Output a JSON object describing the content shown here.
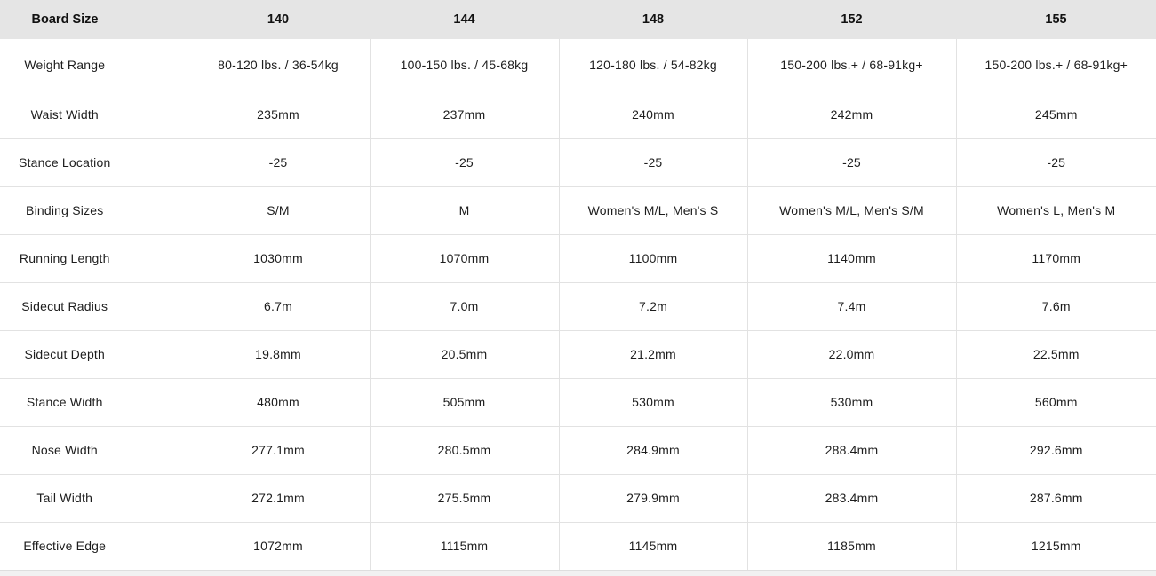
{
  "table": {
    "header": {
      "label": "Board Size",
      "sizes": [
        "140",
        "144",
        "148",
        "152",
        "155"
      ]
    },
    "rows": [
      {
        "label": "Weight Range",
        "values": [
          "80-120 lbs. / 36-54kg",
          "100-150 lbs. / 45-68kg",
          "120-180 lbs. / 54-82kg",
          "150-200 lbs.+ / 68-91kg+",
          "150-200 lbs.+ / 68-91kg+"
        ]
      },
      {
        "label": "Waist Width",
        "values": [
          "235mm",
          "237mm",
          "240mm",
          "242mm",
          "245mm"
        ]
      },
      {
        "label": "Stance Location",
        "values": [
          "-25",
          "-25",
          "-25",
          "-25",
          "-25"
        ]
      },
      {
        "label": "Binding Sizes",
        "values": [
          "S/M",
          "M",
          "Women's M/L, Men's S",
          "Women's M/L, Men's S/M",
          "Women's L, Men's M"
        ]
      },
      {
        "label": "Running Length",
        "values": [
          "1030mm",
          "1070mm",
          "1100mm",
          "1140mm",
          "1170mm"
        ]
      },
      {
        "label": "Sidecut Radius",
        "values": [
          "6.7m",
          "7.0m",
          "7.2m",
          "7.4m",
          "7.6m"
        ]
      },
      {
        "label": "Sidecut Depth",
        "values": [
          "19.8mm",
          "20.5mm",
          "21.2mm",
          "22.0mm",
          "22.5mm"
        ]
      },
      {
        "label": "Stance Width",
        "values": [
          "480mm",
          "505mm",
          "530mm",
          "530mm",
          "560mm"
        ]
      },
      {
        "label": "Nose Width",
        "values": [
          "277.1mm",
          "280.5mm",
          "284.9mm",
          "288.4mm",
          "292.6mm"
        ]
      },
      {
        "label": "Tail Width",
        "values": [
          "272.1mm",
          "275.5mm",
          "279.9mm",
          "283.4mm",
          "287.6mm"
        ]
      },
      {
        "label": "Effective Edge",
        "values": [
          "1072mm",
          "1115mm",
          "1145mm",
          "1185mm",
          "1215mm"
        ]
      }
    ]
  },
  "colors": {
    "header_bg": "#e5e5e5",
    "grid_border": "#e2e2e2",
    "footer_strip_bg": "#f1f1f1",
    "text": "#1d1d1d"
  }
}
